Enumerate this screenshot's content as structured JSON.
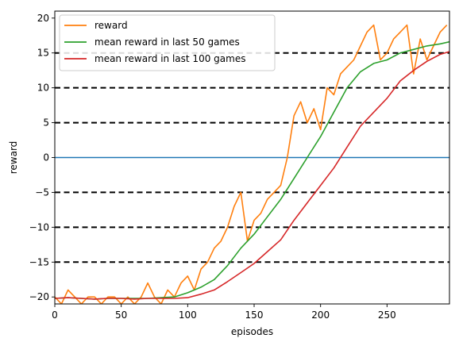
{
  "chart_data": {
    "type": "line",
    "xlabel": "episodes",
    "ylabel": "reward",
    "xlim": [
      0,
      297
    ],
    "ylim": [
      -21,
      21
    ],
    "xticks": [
      0,
      50,
      100,
      150,
      200,
      250
    ],
    "yticks": [
      -20,
      -15,
      -10,
      -5,
      0,
      5,
      10,
      15,
      20
    ],
    "grid": false,
    "legend_position": "upper-left",
    "reference_lines": [
      {
        "y": 0,
        "style": "solid",
        "color": "#1f77b4"
      },
      {
        "y": -15,
        "style": "dashed",
        "color": "#000000"
      },
      {
        "y": -10,
        "style": "dashed",
        "color": "#000000"
      },
      {
        "y": -5,
        "style": "dashed",
        "color": "#000000"
      },
      {
        "y": 5,
        "style": "dashed",
        "color": "#000000"
      },
      {
        "y": 10,
        "style": "dashed",
        "color": "#000000"
      },
      {
        "y": 15,
        "style": "dashed",
        "color": "#000000"
      }
    ],
    "series": [
      {
        "name": "reward",
        "color": "#ff7f0e",
        "x": [
          0,
          5,
          10,
          15,
          20,
          25,
          30,
          35,
          40,
          45,
          50,
          55,
          60,
          65,
          70,
          75,
          80,
          85,
          90,
          95,
          100,
          105,
          110,
          115,
          120,
          125,
          130,
          135,
          140,
          145,
          150,
          155,
          160,
          165,
          170,
          175,
          180,
          185,
          190,
          195,
          200,
          205,
          210,
          215,
          220,
          225,
          230,
          235,
          240,
          245,
          250,
          255,
          260,
          265,
          270,
          275,
          280,
          285,
          290,
          295
        ],
        "values": [
          -20,
          -21,
          -19,
          -20,
          -21,
          -20,
          -20,
          -21,
          -20,
          -20,
          -21,
          -20,
          -21,
          -20,
          -18,
          -20,
          -21,
          -19,
          -20,
          -18,
          -17,
          -19,
          -16,
          -15,
          -13,
          -12,
          -10,
          -7,
          -5,
          -12,
          -9,
          -8,
          -6,
          -5,
          -4,
          0,
          6,
          8,
          5,
          7,
          4,
          10,
          9,
          12,
          13,
          14,
          16,
          18,
          19,
          14,
          15,
          17,
          18,
          19,
          12,
          17,
          14,
          16,
          18,
          19
        ]
      },
      {
        "name": "mean reward in last 50 games",
        "color": "#2ca02c",
        "x": [
          0,
          10,
          20,
          30,
          40,
          50,
          60,
          70,
          80,
          90,
          100,
          110,
          120,
          130,
          140,
          150,
          160,
          170,
          180,
          190,
          200,
          210,
          220,
          230,
          240,
          250,
          260,
          270,
          280,
          290,
          297
        ],
        "values": [
          -20.2,
          -20.1,
          -20.2,
          -20.3,
          -20.2,
          -20.2,
          -20.2,
          -20.2,
          -20.1,
          -20.0,
          -19.4,
          -18.6,
          -17.5,
          -15.5,
          -13.0,
          -11.0,
          -8.5,
          -6.0,
          -3.0,
          0.0,
          3.0,
          6.5,
          10.0,
          12.3,
          13.5,
          14.0,
          15.0,
          15.5,
          16.0,
          16.3,
          16.6
        ]
      },
      {
        "name": "mean reward in last 100 games",
        "color": "#d62728",
        "x": [
          0,
          10,
          20,
          30,
          40,
          50,
          60,
          70,
          80,
          90,
          100,
          110,
          120,
          130,
          140,
          150,
          160,
          170,
          180,
          190,
          200,
          210,
          220,
          230,
          240,
          250,
          260,
          270,
          280,
          290,
          297
        ],
        "values": [
          -20.2,
          -20.1,
          -20.2,
          -20.3,
          -20.2,
          -20.2,
          -20.3,
          -20.2,
          -20.2,
          -20.2,
          -20.1,
          -19.6,
          -19.0,
          -17.8,
          -16.5,
          -15.2,
          -13.5,
          -11.8,
          -9.0,
          -6.5,
          -4.0,
          -1.5,
          1.5,
          4.5,
          6.5,
          8.5,
          11.0,
          12.5,
          13.8,
          14.8,
          15.2
        ]
      }
    ]
  }
}
